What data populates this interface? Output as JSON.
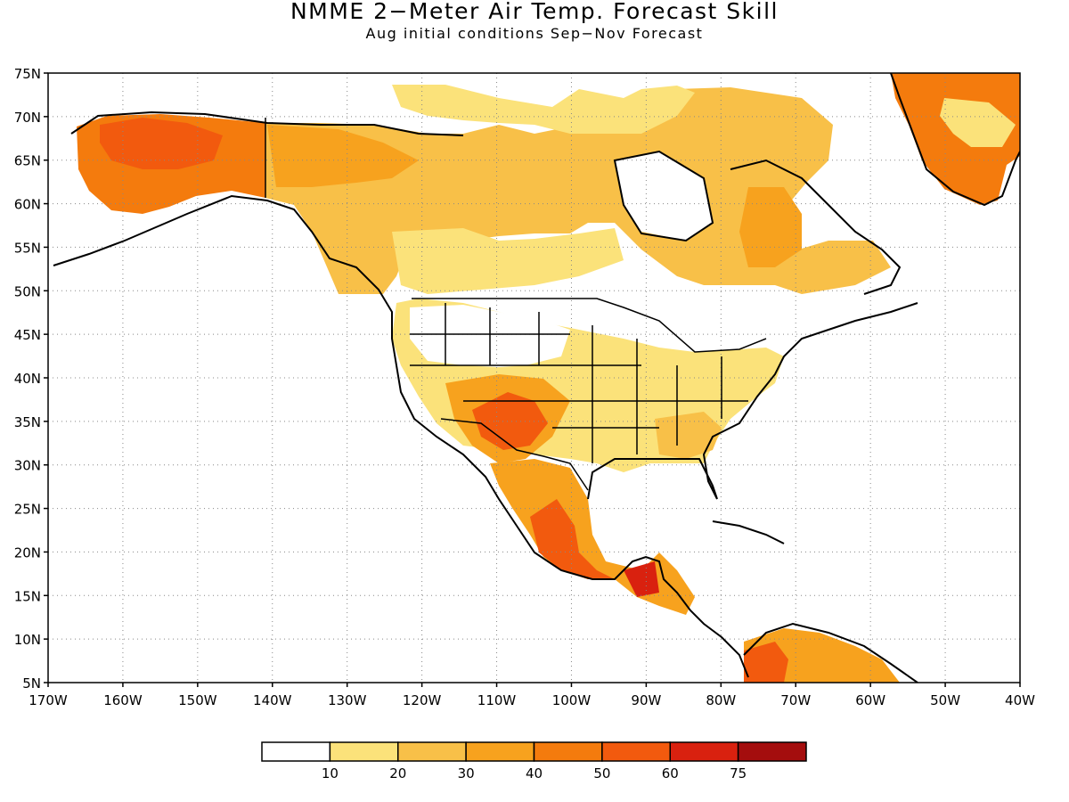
{
  "title": "NMME 2−Meter Air Temp. Forecast Skill",
  "subtitle": "Aug initial conditions  Sep−Nov Forecast",
  "map": {
    "lon_range": [
      -170,
      -40
    ],
    "lat_range": [
      5,
      75
    ],
    "lat_labels": [
      "5N",
      "10N",
      "15N",
      "20N",
      "25N",
      "30N",
      "35N",
      "40N",
      "45N",
      "50N",
      "55N",
      "60N",
      "65N",
      "70N",
      "75N"
    ],
    "lon_labels": [
      "170W",
      "160W",
      "150W",
      "140W",
      "130W",
      "120W",
      "110W",
      "100W",
      "90W",
      "80W",
      "70W",
      "60W",
      "50W",
      "40W"
    ],
    "gridlines": "dotted"
  },
  "colorbar": {
    "labels": [
      "10",
      "20",
      "30",
      "40",
      "50",
      "60",
      "75"
    ],
    "colors": [
      "#ffffff",
      "#fbe27a",
      "#f8c048",
      "#f7a21e",
      "#f47b0d",
      "#f25a0e",
      "#d9210f",
      "#a40d0d"
    ]
  }
}
